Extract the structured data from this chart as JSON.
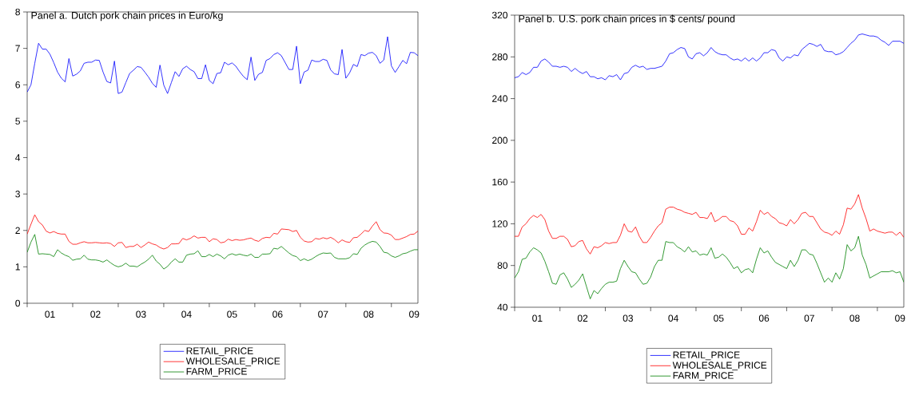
{
  "chart_data": [
    {
      "type": "line",
      "title": "Panel a. Dutch pork chain prices in Euro/kg",
      "x": [
        "2001-01",
        "2001-02",
        "2001-03",
        "2001-04",
        "2001-05",
        "2001-06",
        "2001-07",
        "2001-08",
        "2001-09",
        "2001-10",
        "2001-11",
        "2001-12",
        "2002-01",
        "2002-02",
        "2002-03",
        "2002-04",
        "2002-05",
        "2002-06",
        "2002-07",
        "2002-08",
        "2002-09",
        "2002-10",
        "2002-11",
        "2002-12",
        "2003-01",
        "2003-02",
        "2003-03",
        "2003-04",
        "2003-05",
        "2003-06",
        "2003-07",
        "2003-08",
        "2003-09",
        "2003-10",
        "2003-11",
        "2003-12",
        "2004-01",
        "2004-02",
        "2004-03",
        "2004-04",
        "2004-05",
        "2004-06",
        "2004-07",
        "2004-08",
        "2004-09",
        "2004-10",
        "2004-11",
        "2004-12",
        "2005-01",
        "2005-02",
        "2005-03",
        "2005-04",
        "2005-05",
        "2005-06",
        "2005-07",
        "2005-08",
        "2005-09",
        "2005-10",
        "2005-11",
        "2005-12",
        "2006-01",
        "2006-02",
        "2006-03",
        "2006-04",
        "2006-05",
        "2006-06",
        "2006-07",
        "2006-08",
        "2006-09",
        "2006-10",
        "2006-11",
        "2006-12",
        "2007-01",
        "2007-02",
        "2007-03",
        "2007-04",
        "2007-05",
        "2007-06",
        "2007-07",
        "2007-08",
        "2007-09",
        "2007-10",
        "2007-11",
        "2007-12",
        "2008-01",
        "2008-02",
        "2008-03",
        "2008-04",
        "2008-05",
        "2008-06",
        "2008-07",
        "2008-08",
        "2008-09",
        "2008-10",
        "2008-11",
        "2008-12",
        "2009-01",
        "2009-02",
        "2009-03",
        "2009-04",
        "2009-05",
        "2009-06",
        "2009-07",
        "2009-08"
      ],
      "series": [
        {
          "name": "RETAIL_PRICE",
          "color": "#0000ff",
          "values": [
            5.8,
            6.0,
            6.59,
            7.14,
            6.98,
            6.98,
            6.84,
            6.61,
            6.35,
            6.18,
            6.08,
            6.72,
            6.24,
            6.29,
            6.38,
            6.59,
            6.62,
            6.62,
            6.68,
            6.67,
            6.35,
            6.09,
            6.05,
            6.65,
            5.76,
            5.8,
            6.06,
            6.31,
            6.4,
            6.5,
            6.48,
            6.35,
            6.21,
            6.04,
            5.93,
            6.54,
            5.99,
            5.76,
            6.06,
            6.36,
            6.23,
            6.44,
            6.51,
            6.42,
            6.36,
            6.17,
            6.17,
            6.55,
            6.12,
            6.03,
            6.31,
            6.33,
            6.62,
            6.55,
            6.6,
            6.51,
            6.36,
            6.23,
            6.14,
            6.76,
            6.12,
            6.29,
            6.34,
            6.67,
            6.72,
            6.83,
            6.88,
            6.8,
            6.61,
            6.42,
            6.42,
            7.06,
            6.03,
            6.35,
            6.4,
            6.68,
            6.64,
            6.64,
            6.7,
            6.67,
            6.41,
            6.3,
            6.28,
            6.97,
            6.18,
            6.33,
            6.56,
            6.5,
            6.83,
            6.8,
            6.87,
            6.89,
            6.8,
            6.59,
            6.68,
            7.32,
            6.52,
            6.34,
            6.5,
            6.67,
            6.58,
            6.89,
            6.88,
            6.8
          ]
        },
        {
          "name": "WHOLESALE_PRICE",
          "color": "#ff0000",
          "values": [
            1.9,
            2.17,
            2.43,
            2.24,
            2.15,
            1.98,
            1.93,
            1.97,
            1.92,
            1.9,
            1.9,
            1.7,
            1.62,
            1.62,
            1.66,
            1.69,
            1.66,
            1.66,
            1.67,
            1.66,
            1.65,
            1.66,
            1.64,
            1.56,
            1.66,
            1.67,
            1.53,
            1.56,
            1.56,
            1.62,
            1.53,
            1.6,
            1.68,
            1.63,
            1.6,
            1.53,
            1.49,
            1.53,
            1.63,
            1.63,
            1.64,
            1.78,
            1.74,
            1.78,
            1.85,
            1.79,
            1.81,
            1.81,
            1.69,
            1.77,
            1.75,
            1.66,
            1.68,
            1.76,
            1.72,
            1.75,
            1.73,
            1.74,
            1.77,
            1.79,
            1.73,
            1.7,
            1.78,
            1.81,
            1.8,
            1.92,
            1.9,
            2.04,
            2.03,
            2.02,
            1.97,
            2.0,
            1.81,
            1.71,
            1.68,
            1.69,
            1.78,
            1.76,
            1.8,
            1.77,
            1.81,
            1.75,
            1.66,
            1.74,
            1.69,
            1.67,
            1.8,
            1.81,
            1.9,
            2.0,
            1.97,
            2.12,
            2.24,
            2.02,
            1.93,
            1.92,
            1.87,
            1.75,
            1.75,
            1.79,
            1.83,
            1.89,
            1.9,
            1.98
          ]
        },
        {
          "name": "FARM_PRICE",
          "color": "#008000",
          "values": [
            1.4,
            1.68,
            1.89,
            1.35,
            1.36,
            1.35,
            1.34,
            1.28,
            1.47,
            1.38,
            1.32,
            1.28,
            1.18,
            1.21,
            1.22,
            1.32,
            1.21,
            1.19,
            1.19,
            1.17,
            1.13,
            1.19,
            1.11,
            1.04,
            1.0,
            1.03,
            1.1,
            1.02,
            1.02,
            1.0,
            1.07,
            1.13,
            1.21,
            1.32,
            1.16,
            1.07,
            0.94,
            1.01,
            1.13,
            1.22,
            1.13,
            1.13,
            1.32,
            1.35,
            1.36,
            1.44,
            1.28,
            1.28,
            1.34,
            1.28,
            1.35,
            1.3,
            1.22,
            1.32,
            1.36,
            1.32,
            1.35,
            1.32,
            1.3,
            1.35,
            1.26,
            1.26,
            1.35,
            1.35,
            1.36,
            1.51,
            1.49,
            1.56,
            1.47,
            1.38,
            1.31,
            1.28,
            1.17,
            1.22,
            1.17,
            1.21,
            1.28,
            1.34,
            1.38,
            1.37,
            1.38,
            1.26,
            1.22,
            1.22,
            1.22,
            1.25,
            1.36,
            1.34,
            1.51,
            1.6,
            1.66,
            1.7,
            1.68,
            1.56,
            1.4,
            1.38,
            1.3,
            1.26,
            1.3,
            1.36,
            1.38,
            1.43,
            1.47,
            1.47
          ]
        }
      ],
      "xlim": [
        "2001-01",
        "2009-08"
      ],
      "xticks": [
        {
          "value": "2001-01",
          "label": null
        },
        {
          "value": "2002-01",
          "label": null
        },
        {
          "value": "2003-01",
          "label": null
        },
        {
          "value": "2004-01",
          "label": null
        },
        {
          "value": "2005-01",
          "label": null
        },
        {
          "value": "2006-01",
          "label": null
        },
        {
          "value": "2007-01",
          "label": null
        },
        {
          "value": "2008-01",
          "label": null
        },
        {
          "value": "2009-01",
          "label": null
        },
        {
          "value": "2001-07",
          "label": "01"
        },
        {
          "value": "2002-07",
          "label": "02"
        },
        {
          "value": "2003-07",
          "label": "03"
        },
        {
          "value": "2004-07",
          "label": "04"
        },
        {
          "value": "2005-07",
          "label": "05"
        },
        {
          "value": "2006-07",
          "label": "06"
        },
        {
          "value": "2007-07",
          "label": "07"
        },
        {
          "value": "2008-07",
          "label": "08"
        },
        {
          "value": "2009-07",
          "label": "09"
        }
      ],
      "ylim": [
        0,
        8
      ],
      "yticks": [
        0,
        1,
        2,
        3,
        4,
        5,
        6,
        7,
        8
      ],
      "legend": "bottom"
    },
    {
      "type": "line",
      "title": "Panel b. U.S. pork chain prices in $ cents/ pound",
      "x": [
        "2001-01",
        "2001-02",
        "2001-03",
        "2001-04",
        "2001-05",
        "2001-06",
        "2001-07",
        "2001-08",
        "2001-09",
        "2001-10",
        "2001-11",
        "2001-12",
        "2002-01",
        "2002-02",
        "2002-03",
        "2002-04",
        "2002-05",
        "2002-06",
        "2002-07",
        "2002-08",
        "2002-09",
        "2002-10",
        "2002-11",
        "2002-12",
        "2003-01",
        "2003-02",
        "2003-03",
        "2003-04",
        "2003-05",
        "2003-06",
        "2003-07",
        "2003-08",
        "2003-09",
        "2003-10",
        "2003-11",
        "2003-12",
        "2004-01",
        "2004-02",
        "2004-03",
        "2004-04",
        "2004-05",
        "2004-06",
        "2004-07",
        "2004-08",
        "2004-09",
        "2004-10",
        "2004-11",
        "2004-12",
        "2005-01",
        "2005-02",
        "2005-03",
        "2005-04",
        "2005-05",
        "2005-06",
        "2005-07",
        "2005-08",
        "2005-09",
        "2005-10",
        "2005-11",
        "2005-12",
        "2006-01",
        "2006-02",
        "2006-03",
        "2006-04",
        "2006-05",
        "2006-06",
        "2006-07",
        "2006-08",
        "2006-09",
        "2006-10",
        "2006-11",
        "2006-12",
        "2007-01",
        "2007-02",
        "2007-03",
        "2007-04",
        "2007-05",
        "2007-06",
        "2007-07",
        "2007-08",
        "2007-09",
        "2007-10",
        "2007-11",
        "2007-12",
        "2008-01",
        "2008-02",
        "2008-03",
        "2008-04",
        "2008-05",
        "2008-06",
        "2008-07",
        "2008-08",
        "2008-09",
        "2008-10",
        "2008-11",
        "2008-12",
        "2009-01",
        "2009-02",
        "2009-03",
        "2009-04",
        "2009-05",
        "2009-06",
        "2009-07",
        "2009-08"
      ],
      "series": [
        {
          "name": "RETAIL_PRICE",
          "color": "#0000ff",
          "values": [
            260,
            261,
            265,
            263,
            265,
            270,
            270,
            276,
            278,
            275,
            271,
            271,
            270,
            271,
            270,
            266,
            269,
            266,
            264,
            266,
            261,
            261,
            259,
            260,
            258,
            262,
            261,
            263,
            258,
            264,
            265,
            270,
            272,
            270,
            271,
            268,
            269,
            269,
            270,
            271,
            276,
            283,
            284,
            287,
            289,
            288,
            280,
            278,
            283,
            284,
            281,
            284,
            289,
            285,
            283,
            282,
            282,
            279,
            277,
            278,
            276,
            279,
            276,
            279,
            276,
            279,
            284,
            284,
            287,
            286,
            279,
            276,
            280,
            279,
            282,
            281,
            287,
            290,
            293,
            292,
            290,
            292,
            286,
            285,
            285,
            282,
            283,
            285,
            289,
            293,
            296,
            301,
            302,
            301,
            300,
            300,
            299,
            296,
            294,
            291,
            295,
            295,
            295,
            293
          ]
        },
        {
          "name": "WHOLESALE_PRICE",
          "color": "#ff0000",
          "values": [
            108,
            108,
            117,
            120,
            125,
            128,
            126,
            129,
            124,
            113,
            106,
            106,
            108,
            108,
            105,
            98,
            99,
            103,
            104,
            96,
            91,
            98,
            97,
            99,
            102,
            101,
            102,
            102,
            109,
            120,
            113,
            112,
            117,
            108,
            102,
            102,
            107,
            113,
            118,
            121,
            134,
            136,
            136,
            134,
            133,
            131,
            130,
            129,
            131,
            126,
            126,
            125,
            131,
            122,
            124,
            127,
            127,
            123,
            122,
            118,
            110,
            110,
            116,
            113,
            122,
            133,
            129,
            131,
            127,
            125,
            121,
            120,
            118,
            124,
            120,
            124,
            130,
            131,
            127,
            127,
            121,
            115,
            112,
            111,
            109,
            113,
            110,
            119,
            135,
            134,
            139,
            148,
            135,
            125,
            113,
            115,
            113,
            112,
            111,
            112,
            112,
            109,
            112,
            107
          ]
        },
        {
          "name": "FARM_PRICE",
          "color": "#008000",
          "values": [
            68,
            74,
            86,
            87,
            93,
            97,
            95,
            92,
            84,
            74,
            63,
            62,
            71,
            73,
            67,
            59,
            62,
            66,
            72,
            60,
            48,
            56,
            53,
            58,
            62,
            64,
            64,
            65,
            77,
            85,
            79,
            74,
            73,
            67,
            62,
            63,
            69,
            79,
            85,
            85,
            103,
            102,
            102,
            98,
            96,
            93,
            98,
            93,
            94,
            90,
            91,
            90,
            97,
            87,
            88,
            91,
            88,
            83,
            77,
            79,
            73,
            76,
            77,
            73,
            86,
            97,
            92,
            94,
            88,
            83,
            81,
            79,
            77,
            85,
            79,
            85,
            95,
            95,
            91,
            90,
            82,
            73,
            64,
            68,
            64,
            73,
            67,
            77,
            100,
            94,
            97,
            108,
            90,
            81,
            68,
            70,
            72,
            74,
            74,
            74,
            75,
            73,
            74,
            64
          ]
        }
      ],
      "xlim": [
        "2001-01",
        "2009-08"
      ],
      "xticks": [
        {
          "value": "2001-01",
          "label": null
        },
        {
          "value": "2002-01",
          "label": null
        },
        {
          "value": "2003-01",
          "label": null
        },
        {
          "value": "2004-01",
          "label": null
        },
        {
          "value": "2005-01",
          "label": null
        },
        {
          "value": "2006-01",
          "label": null
        },
        {
          "value": "2007-01",
          "label": null
        },
        {
          "value": "2008-01",
          "label": null
        },
        {
          "value": "2009-01",
          "label": null
        },
        {
          "value": "2001-07",
          "label": "01"
        },
        {
          "value": "2002-07",
          "label": "02"
        },
        {
          "value": "2003-07",
          "label": "03"
        },
        {
          "value": "2004-07",
          "label": "04"
        },
        {
          "value": "2005-07",
          "label": "05"
        },
        {
          "value": "2006-07",
          "label": "06"
        },
        {
          "value": "2007-07",
          "label": "07"
        },
        {
          "value": "2008-07",
          "label": "08"
        },
        {
          "value": "2009-07",
          "label": "09"
        }
      ],
      "ylim": [
        40,
        320
      ],
      "yticks": [
        40,
        80,
        120,
        160,
        200,
        240,
        280,
        320
      ],
      "legend": "bottom"
    }
  ]
}
